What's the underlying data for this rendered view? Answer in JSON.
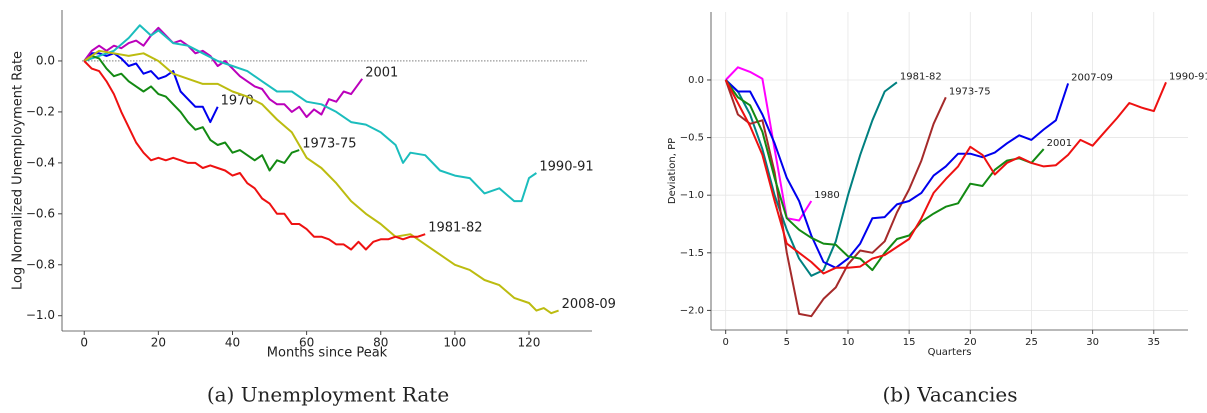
{
  "chart_data": [
    {
      "type": "line",
      "caption": "(a) Unemployment Rate",
      "xlabel": "Months since Peak",
      "ylabel": "Log Normalized Unemployment Rate",
      "xlim": [
        -6,
        137
      ],
      "ylim": [
        -1.06,
        0.2
      ],
      "xticks": [
        0,
        20,
        40,
        60,
        80,
        100,
        120
      ],
      "yticks": [
        {
          "value": -1.0,
          "label": "−1.0"
        },
        {
          "value": -0.8,
          "label": "−0.8"
        },
        {
          "value": -0.6,
          "label": "−0.6"
        },
        {
          "value": -0.4,
          "label": "−0.4"
        },
        {
          "value": -0.2,
          "label": "−0.2"
        },
        {
          "value": 0,
          "label": "0.0"
        }
      ],
      "grid": false,
      "hline": 0,
      "series": [
        {
          "name": "1970",
          "color": "#0000ee",
          "x": [
            0,
            2,
            4,
            6,
            8,
            10,
            12,
            14,
            16,
            18,
            20,
            22,
            24,
            26,
            28,
            30,
            32,
            34,
            36
          ],
          "values": [
            0,
            0.03,
            0.03,
            0.02,
            0.03,
            0.01,
            -0.02,
            -0.01,
            -0.05,
            -0.04,
            -0.07,
            -0.06,
            -0.04,
            -0.12,
            -0.15,
            -0.18,
            -0.18,
            -0.24,
            -0.18
          ]
        },
        {
          "name": "2001",
          "color": "#bb00bb",
          "x": [
            0,
            2,
            4,
            6,
            8,
            10,
            12,
            14,
            16,
            18,
            20,
            22,
            24,
            26,
            28,
            30,
            32,
            34,
            36,
            38,
            40,
            42,
            44,
            46,
            48,
            50,
            52,
            54,
            56,
            58,
            60,
            62,
            64,
            66,
            68,
            70,
            72,
            74,
            75
          ],
          "values": [
            0,
            0.04,
            0.06,
            0.04,
            0.06,
            0.05,
            0.07,
            0.08,
            0.06,
            0.1,
            0.13,
            0.1,
            0.07,
            0.08,
            0.06,
            0.03,
            0.04,
            0.02,
            -0.02,
            0,
            -0.03,
            -0.06,
            -0.08,
            -0.1,
            -0.11,
            -0.15,
            -0.17,
            -0.17,
            -0.2,
            -0.18,
            -0.22,
            -0.19,
            -0.21,
            -0.15,
            -0.16,
            -0.12,
            -0.13,
            -0.09,
            -0.07
          ]
        },
        {
          "name": "1990-91",
          "color": "#1bbdbd",
          "x": [
            0,
            4,
            8,
            12,
            15,
            18,
            20,
            24,
            28,
            32,
            36,
            40,
            44,
            48,
            52,
            56,
            60,
            64,
            68,
            72,
            76,
            80,
            84,
            86,
            88,
            92,
            96,
            100,
            104,
            108,
            112,
            116,
            118,
            120,
            122
          ],
          "values": [
            0,
            0.02,
            0.04,
            0.09,
            0.14,
            0.1,
            0.12,
            0.07,
            0.06,
            0.03,
            0,
            -0.02,
            -0.04,
            -0.08,
            -0.12,
            -0.12,
            -0.16,
            -0.17,
            -0.2,
            -0.24,
            -0.25,
            -0.28,
            -0.33,
            -0.4,
            -0.36,
            -0.37,
            -0.43,
            -0.45,
            -0.46,
            -0.52,
            -0.5,
            -0.55,
            -0.55,
            -0.46,
            -0.44
          ]
        },
        {
          "name": "1973-75",
          "color": "#138a13",
          "x": [
            0,
            2,
            4,
            6,
            8,
            10,
            12,
            14,
            16,
            18,
            20,
            22,
            24,
            26,
            28,
            30,
            32,
            34,
            36,
            38,
            40,
            42,
            44,
            46,
            48,
            50,
            52,
            54,
            56,
            58
          ],
          "values": [
            0,
            0.02,
            0.01,
            -0.03,
            -0.06,
            -0.05,
            -0.08,
            -0.1,
            -0.12,
            -0.1,
            -0.13,
            -0.14,
            -0.17,
            -0.2,
            -0.24,
            -0.27,
            -0.26,
            -0.31,
            -0.33,
            -0.32,
            -0.36,
            -0.35,
            -0.37,
            -0.39,
            -0.37,
            -0.43,
            -0.39,
            -0.4,
            -0.36,
            -0.35
          ]
        },
        {
          "name": "2008-09",
          "color": "#bcbc10",
          "x": [
            0,
            4,
            8,
            12,
            16,
            20,
            24,
            28,
            32,
            36,
            40,
            44,
            48,
            52,
            56,
            60,
            64,
            68,
            72,
            76,
            80,
            84,
            88,
            92,
            96,
            100,
            104,
            108,
            112,
            116,
            120,
            122,
            124,
            126,
            128
          ],
          "values": [
            0,
            0.04,
            0.03,
            0.02,
            0.03,
            0,
            -0.05,
            -0.07,
            -0.09,
            -0.09,
            -0.12,
            -0.14,
            -0.17,
            -0.23,
            -0.28,
            -0.38,
            -0.42,
            -0.48,
            -0.55,
            -0.6,
            -0.64,
            -0.69,
            -0.68,
            -0.72,
            -0.76,
            -0.8,
            -0.82,
            -0.86,
            -0.88,
            -0.93,
            -0.95,
            -0.98,
            -0.97,
            -0.99,
            -0.98
          ]
        },
        {
          "name": "1981-82",
          "color": "#ee1111",
          "x": [
            0,
            2,
            4,
            6,
            8,
            10,
            12,
            14,
            16,
            18,
            20,
            22,
            24,
            26,
            28,
            30,
            32,
            34,
            36,
            38,
            40,
            42,
            44,
            46,
            48,
            50,
            52,
            54,
            56,
            58,
            60,
            62,
            64,
            66,
            68,
            70,
            72,
            74,
            76,
            78,
            80,
            82,
            84,
            86,
            88,
            90,
            92
          ],
          "values": [
            0,
            -0.03,
            -0.04,
            -0.08,
            -0.13,
            -0.2,
            -0.26,
            -0.32,
            -0.36,
            -0.39,
            -0.38,
            -0.39,
            -0.38,
            -0.39,
            -0.4,
            -0.4,
            -0.42,
            -0.41,
            -0.42,
            -0.43,
            -0.45,
            -0.44,
            -0.48,
            -0.5,
            -0.54,
            -0.56,
            -0.6,
            -0.6,
            -0.64,
            -0.64,
            -0.66,
            -0.69,
            -0.69,
            -0.7,
            -0.72,
            -0.72,
            -0.74,
            -0.71,
            -0.74,
            -0.71,
            -0.7,
            -0.7,
            -0.69,
            -0.7,
            -0.69,
            -0.69,
            -0.68
          ]
        }
      ]
    },
    {
      "type": "line",
      "caption": "(b) Vacancies",
      "xlabel": "Quarters",
      "ylabel": "Deviation, PP",
      "xlim": [
        -1.2,
        37.8
      ],
      "ylim": [
        -2.17,
        0.59
      ],
      "xticks": [
        0,
        5,
        10,
        15,
        20,
        25,
        30,
        35
      ],
      "yticks": [
        {
          "value": -2.0,
          "label": "−2.0"
        },
        {
          "value": -1.5,
          "label": "−1.5"
        },
        {
          "value": -1.0,
          "label": "−1.0"
        },
        {
          "value": -0.5,
          "label": "−0.5"
        },
        {
          "value": 0,
          "label": "0.0"
        }
      ],
      "grid": true,
      "series": [
        {
          "name": "1980",
          "color": "#ff00ff",
          "x": [
            0,
            1,
            2,
            3,
            4,
            5,
            6,
            7
          ],
          "values": [
            0,
            0.11,
            0.07,
            0.01,
            -0.6,
            -1.2,
            -1.22,
            -1.05
          ]
        },
        {
          "name": "1981-82",
          "color": "#008080",
          "x": [
            0,
            1,
            2,
            3,
            4,
            5,
            6,
            7,
            8,
            9,
            10,
            11,
            12,
            13,
            14
          ],
          "values": [
            0,
            -0.1,
            -0.3,
            -0.6,
            -1.0,
            -1.3,
            -1.55,
            -1.7,
            -1.65,
            -1.4,
            -1.0,
            -0.65,
            -0.35,
            -0.1,
            -0.02
          ]
        },
        {
          "name": "1973-75",
          "color": "#a52a2a",
          "x": [
            0,
            1,
            2,
            3,
            4,
            5,
            6,
            7,
            8,
            9,
            10,
            11,
            12,
            13,
            14,
            15,
            16,
            17,
            18
          ],
          "values": [
            0,
            -0.3,
            -0.38,
            -0.35,
            -0.8,
            -1.5,
            -2.03,
            -2.05,
            -1.9,
            -1.8,
            -1.6,
            -1.48,
            -1.5,
            -1.4,
            -1.15,
            -0.95,
            -0.7,
            -0.38,
            -0.15
          ]
        },
        {
          "name": "2007-09",
          "color": "#0000ee",
          "x": [
            0,
            1,
            2,
            3,
            4,
            5,
            6,
            7,
            8,
            9,
            10,
            11,
            12,
            13,
            14,
            15,
            16,
            17,
            18,
            19,
            20,
            21,
            22,
            23,
            24,
            25,
            26,
            27,
            28
          ],
          "values": [
            0,
            -0.1,
            -0.1,
            -0.3,
            -0.55,
            -0.85,
            -1.05,
            -1.35,
            -1.58,
            -1.63,
            -1.55,
            -1.42,
            -1.2,
            -1.19,
            -1.08,
            -1.05,
            -0.98,
            -0.83,
            -0.75,
            -0.64,
            -0.64,
            -0.67,
            -0.63,
            -0.55,
            -0.48,
            -0.52,
            -0.43,
            -0.35,
            -0.03
          ]
        },
        {
          "name": "2001",
          "color": "#138a13",
          "x": [
            0,
            1,
            2,
            3,
            4,
            5,
            6,
            7,
            8,
            9,
            10,
            11,
            12,
            13,
            14,
            15,
            16,
            17,
            18,
            19,
            20,
            21,
            22,
            23,
            24,
            25,
            26
          ],
          "values": [
            0,
            -0.15,
            -0.22,
            -0.45,
            -0.85,
            -1.2,
            -1.3,
            -1.37,
            -1.42,
            -1.43,
            -1.53,
            -1.55,
            -1.65,
            -1.5,
            -1.38,
            -1.35,
            -1.23,
            -1.16,
            -1.1,
            -1.07,
            -0.9,
            -0.92,
            -0.78,
            -0.7,
            -0.68,
            -0.72,
            -0.6
          ]
        },
        {
          "name": "1990-91",
          "color": "#ee1111",
          "x": [
            0,
            1,
            2,
            3,
            4,
            5,
            6,
            7,
            8,
            9,
            10,
            11,
            12,
            13,
            14,
            15,
            16,
            17,
            18,
            19,
            20,
            21,
            22,
            23,
            24,
            25,
            26,
            27,
            28,
            29,
            30,
            31,
            32,
            33,
            34,
            35,
            36
          ],
          "values": [
            0,
            -0.2,
            -0.4,
            -0.65,
            -1.05,
            -1.42,
            -1.5,
            -1.58,
            -1.68,
            -1.63,
            -1.63,
            -1.62,
            -1.55,
            -1.52,
            -1.45,
            -1.38,
            -1.2,
            -0.98,
            -0.86,
            -0.75,
            -0.58,
            -0.65,
            -0.82,
            -0.72,
            -0.67,
            -0.72,
            -0.75,
            -0.74,
            -0.65,
            -0.52,
            -0.57,
            -0.45,
            -0.33,
            -0.2,
            -0.24,
            -0.27,
            -0.02
          ]
        }
      ]
    }
  ]
}
